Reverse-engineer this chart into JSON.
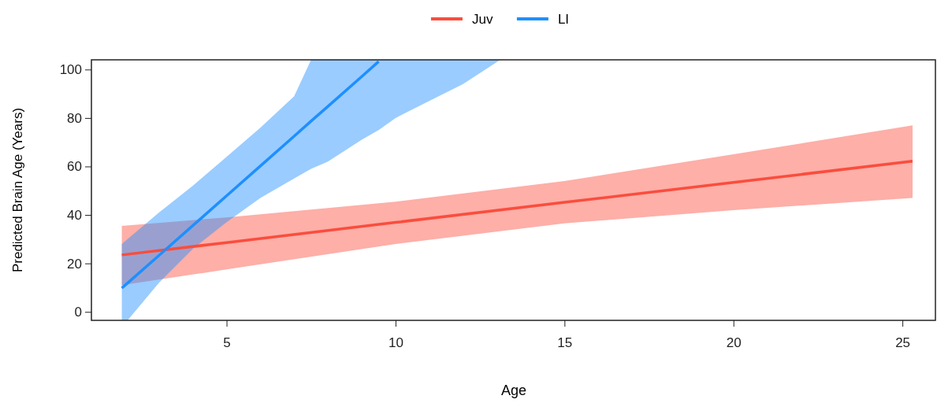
{
  "chart_data": {
    "type": "line",
    "xlabel": "Age",
    "ylabel": "Predicted Brain Age (Years)",
    "xlim": [
      1,
      26
    ],
    "ylim": [
      -3.5,
      104
    ],
    "xticks": [
      5,
      10,
      15,
      20,
      25
    ],
    "yticks": [
      0,
      20,
      40,
      60,
      80,
      100
    ],
    "grid": false,
    "legend": "top",
    "marker": "none",
    "line_style": "solid",
    "series": [
      {
        "name": "Juv",
        "color": "#fb4d3d",
        "x": [
          1.9,
          5,
          10,
          15,
          20,
          25.3
        ],
        "values": [
          23.5,
          28.6,
          36.9,
          45.2,
          53.4,
          62.2
        ],
        "lower": [
          11,
          17.5,
          28,
          36.5,
          42,
          47
        ],
        "upper": [
          35.5,
          39,
          45.5,
          54,
          65,
          77
        ]
      },
      {
        "name": "LI",
        "color": "#1e8fff",
        "x": [
          1.9,
          2.07,
          3,
          4,
          5,
          6,
          7,
          7.5,
          8,
          9,
          9.5,
          10,
          11,
          12,
          13.1
        ],
        "values": [
          9.8,
          11.9,
          23.3,
          35.6,
          47.9,
          60.2,
          72.5,
          78.7,
          84.8,
          97.1,
          103.3,
          null,
          null,
          null,
          null
        ],
        "lower": [
          -3.5,
          -3.5,
          12,
          26,
          37,
          47,
          55,
          59,
          62,
          71,
          75,
          80,
          87,
          94,
          104
        ],
        "upper": [
          28,
          30,
          41,
          52,
          64,
          76,
          89,
          104,
          104,
          104,
          104,
          104,
          104,
          104,
          104
        ]
      }
    ]
  }
}
